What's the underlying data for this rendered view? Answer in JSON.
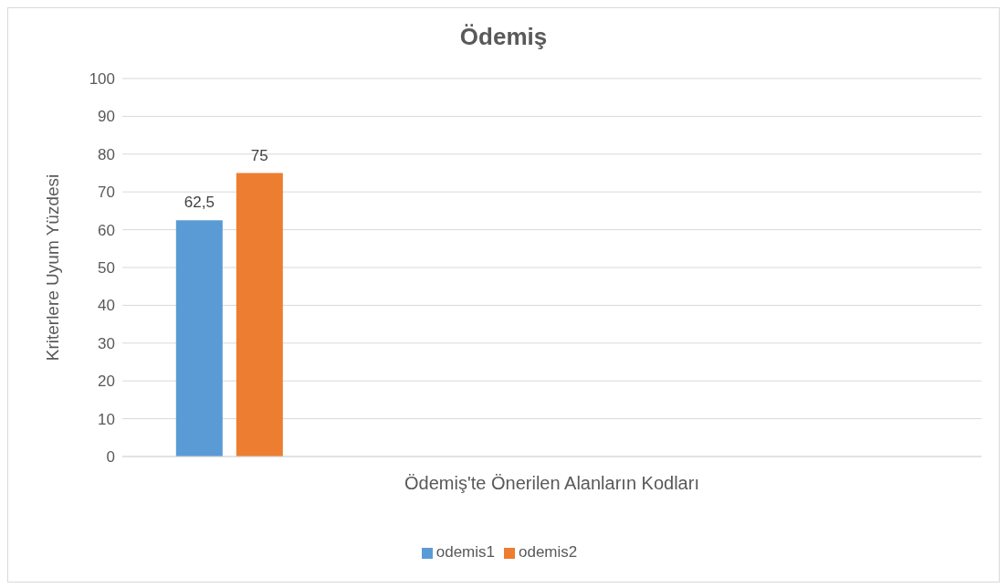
{
  "chart_data": {
    "type": "bar",
    "title": "Ödemiş",
    "xlabel": "Ödemiş'te Önerilen Alanların Kodları",
    "ylabel": "Kriterlere Uyum Yüzdesi",
    "categories": [
      null,
      null,
      null,
      null
    ],
    "series": [
      {
        "name": "odemis1",
        "color": "#5b9bd5",
        "values": [
          62.5,
          null,
          null,
          null
        ],
        "value_labels": [
          "62,5",
          null,
          null,
          null
        ]
      },
      {
        "name": "odemis2",
        "color": "#ed7d31",
        "values": [
          75,
          null,
          null,
          null
        ],
        "value_labels": [
          "75",
          null,
          null,
          null
        ]
      }
    ],
    "ylim": [
      0,
      100
    ],
    "yticks": [
      0,
      10,
      20,
      30,
      40,
      50,
      60,
      70,
      80,
      90,
      100
    ],
    "grid": "y",
    "legend": "bottom"
  }
}
